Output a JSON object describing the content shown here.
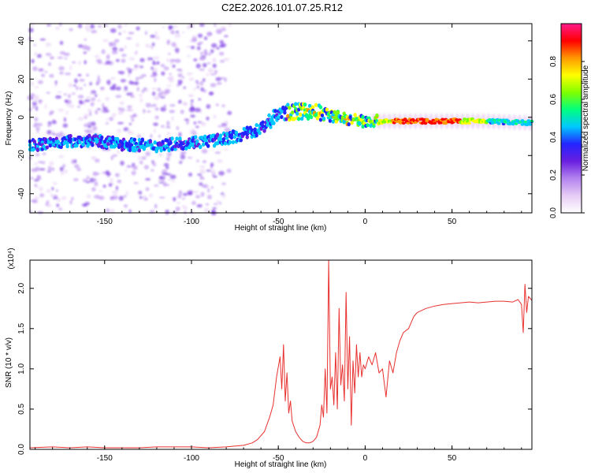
{
  "page_title": "C2E2.2026.101.07.25.R12",
  "chart_data": [
    {
      "type": "heatmap",
      "title": "C2E2.2026.101.07.25.R12",
      "xlabel": "Height of straight line (km)",
      "ylabel": "Frequency (Hz)",
      "xlim": [
        -193,
        96
      ],
      "ylim": [
        -50,
        49
      ],
      "xticks": [
        -150,
        -100,
        -50,
        0,
        50
      ],
      "yticks": [
        -40,
        -20,
        0,
        20,
        40
      ],
      "ridge": {
        "x": [
          -193,
          -175,
          -160,
          -140,
          -120,
          -100,
          -85,
          -70,
          -60,
          -50,
          -40,
          -30,
          -20,
          -10,
          0,
          10,
          30,
          50,
          70,
          96
        ],
        "y": [
          -15,
          -13,
          -12,
          -14,
          -15,
          -13,
          -12,
          -9,
          -6,
          2,
          3,
          3,
          1,
          -1,
          -2,
          -2,
          -2,
          -2,
          -2,
          -3
        ]
      },
      "colorbar": {
        "label": "Normalized spectral amplitude",
        "range": [
          0,
          1
        ],
        "ticks": [
          0.0,
          0.2,
          0.4,
          0.6,
          0.8
        ],
        "tick_labels": [
          "0.0",
          "0.2",
          "0.4",
          "0.6",
          "0.8"
        ],
        "colormap": [
          "#ffffff",
          "#e6ccf5",
          "#b383ee",
          "#6a1fe0",
          "#2424ff",
          "#00c8ff",
          "#00ff80",
          "#7fff00",
          "#ffff00",
          "#ff9900",
          "#ff0000",
          "#ff1a8c"
        ]
      }
    },
    {
      "type": "line",
      "xlabel": "Height of straight line (km)",
      "ylabel": "SNR (10 * v/v)",
      "multiplier_label": "(x10⁴)",
      "xlim": [
        -193,
        96
      ],
      "ylim": [
        0,
        2.35
      ],
      "xticks": [
        -150,
        -100,
        -50,
        0,
        50
      ],
      "yticks": [
        0.0,
        0.5,
        1.0,
        1.5,
        2.0
      ],
      "series": [
        {
          "name": "SNR",
          "color": "#e8312f",
          "x": [
            -193,
            -180,
            -170,
            -160,
            -150,
            -140,
            -130,
            -120,
            -110,
            -100,
            -90,
            -80,
            -75,
            -70,
            -65,
            -62,
            -58,
            -55,
            -53,
            -51,
            -49,
            -48,
            -47,
            -46,
            -45,
            -44,
            -43,
            -42,
            -40,
            -38,
            -36,
            -34,
            -32,
            -30,
            -28,
            -26,
            -25,
            -24,
            -23,
            -22,
            -21,
            -20,
            -19,
            -18,
            -17,
            -16,
            -15,
            -14,
            -13,
            -12,
            -11,
            -10,
            -9,
            -8,
            -7,
            -6,
            -5,
            -4,
            -3,
            -2,
            -1,
            0,
            2,
            4,
            6,
            8,
            10,
            12,
            14,
            16,
            18,
            20,
            22,
            25,
            28,
            30,
            35,
            40,
            45,
            50,
            55,
            60,
            65,
            70,
            75,
            80,
            85,
            88,
            90,
            91,
            92,
            93,
            94,
            96
          ],
          "y": [
            0.02,
            0.03,
            0.02,
            0.03,
            0.02,
            0.02,
            0.02,
            0.03,
            0.03,
            0.03,
            0.02,
            0.03,
            0.04,
            0.05,
            0.08,
            0.12,
            0.22,
            0.4,
            0.55,
            0.9,
            1.15,
            0.75,
            1.3,
            0.6,
            0.95,
            0.45,
            0.6,
            0.35,
            0.22,
            0.15,
            0.1,
            0.08,
            0.08,
            0.1,
            0.15,
            0.3,
            0.55,
            0.4,
            1.0,
            0.45,
            2.35,
            0.75,
            0.9,
            0.55,
            1.2,
            0.5,
            1.75,
            0.8,
            1.05,
            0.6,
            1.95,
            0.75,
            1.4,
            0.3,
            1.1,
            0.7,
            1.3,
            0.9,
            1.2,
            0.9,
            1.05,
            1.0,
            1.15,
            1.05,
            1.2,
            0.95,
            1.0,
            0.65,
            1.1,
            0.95,
            1.2,
            1.35,
            1.45,
            1.5,
            1.65,
            1.7,
            1.75,
            1.78,
            1.8,
            1.81,
            1.82,
            1.83,
            1.82,
            1.83,
            1.84,
            1.84,
            1.83,
            1.86,
            1.8,
            1.45,
            2.05,
            1.7,
            1.9,
            1.85
          ]
        }
      ]
    }
  ]
}
